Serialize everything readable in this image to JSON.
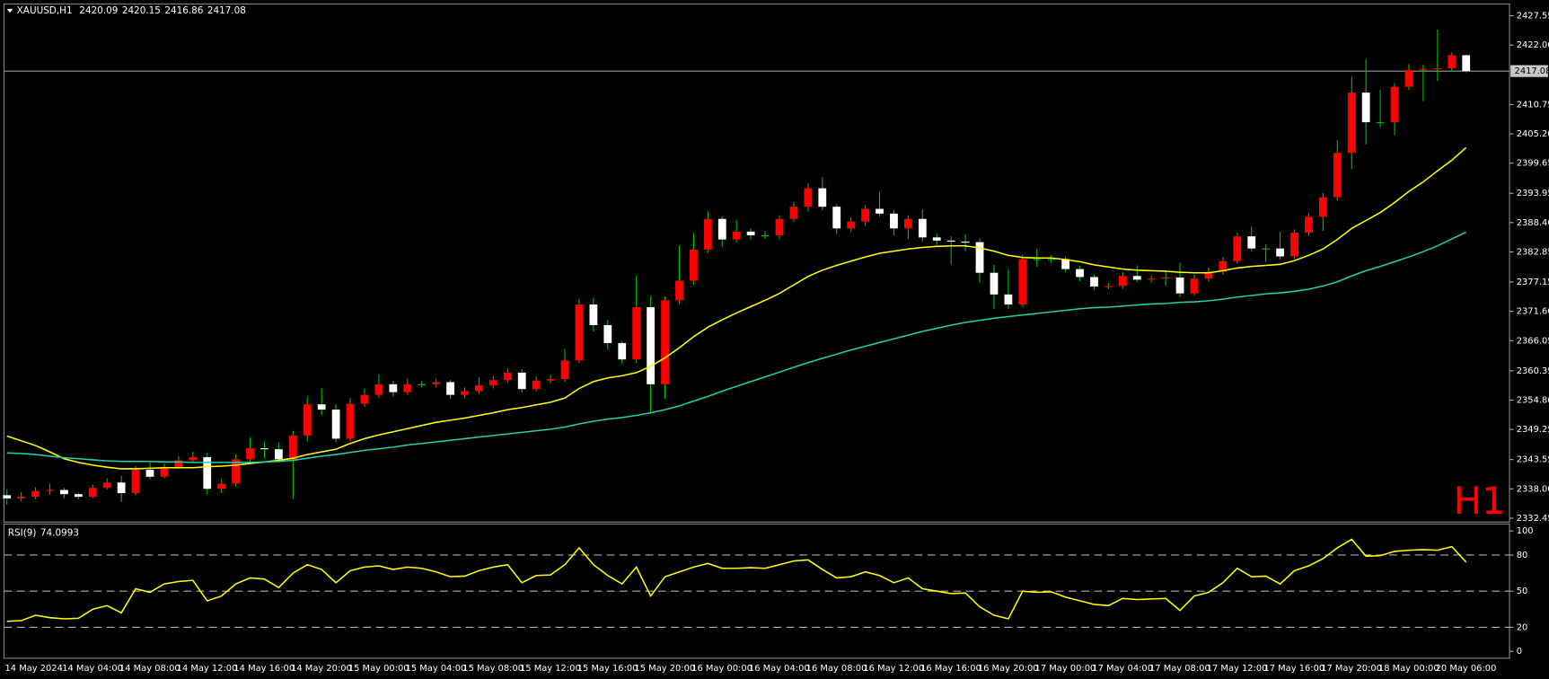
{
  "chart_data": [
    {
      "type": "candlestick",
      "title": "XAUUSD,H1",
      "timeframe_label": "H1",
      "categories": [
        "14 May 2024",
        null,
        null,
        null,
        "14 May 04:00",
        null,
        null,
        null,
        "14 May 08:00",
        null,
        null,
        null,
        "14 May 12:00",
        null,
        null,
        null,
        "14 May 16:00",
        null,
        null,
        null,
        "14 May 20:00",
        null,
        null,
        null,
        "15 May 00:00",
        null,
        null,
        null,
        "15 May 04:00",
        null,
        null,
        null,
        "15 May 08:00",
        null,
        null,
        null,
        "15 May 12:00",
        null,
        null,
        null,
        "15 May 16:00",
        null,
        null,
        null,
        "15 May 20:00",
        null,
        null,
        null,
        "16 May 00:00",
        null,
        null,
        null,
        "16 May 04:00",
        null,
        null,
        null,
        "16 May 08:00",
        null,
        null,
        null,
        "16 May 12:00",
        null,
        null,
        null,
        "16 May 16:00",
        null,
        null,
        null,
        "16 May 20:00",
        null,
        null,
        null,
        "17 May 00:00",
        null,
        null,
        null,
        "17 May 04:00",
        null,
        null,
        null,
        "17 May 08:00",
        null,
        null,
        null,
        "17 May 12:00",
        null,
        null,
        null,
        "17 May 16:00",
        null,
        null,
        null,
        "17 May 20:00",
        null,
        null,
        null,
        "18 May 00:00",
        null,
        null,
        null,
        "20 May 06:00",
        null,
        null
      ],
      "open": [
        2336.8,
        2336.2,
        2336.5,
        2337.6,
        2337.8,
        2337.0,
        2336.5,
        2338.2,
        2339.2,
        2337.2,
        2341.6,
        2340.3,
        2342.1,
        2343.4,
        2344.0,
        2338.0,
        2339.0,
        2343.6,
        2345.7,
        2345.5,
        2343.6,
        2348.1,
        2354.0,
        2353.0,
        2347.5,
        2354.1,
        2355.8,
        2357.8,
        2356.3,
        2357.8,
        2357.8,
        2358.2,
        2355.8,
        2356.5,
        2357.6,
        2358.6,
        2360.0,
        2356.9,
        2358.5,
        2358.8,
        2362.3,
        2372.9,
        2369.0,
        2365.6,
        2362.5,
        2372.4,
        2357.8,
        2373.7,
        2377.4,
        2383.3,
        2389.1,
        2385.2,
        2386.7,
        2386.0,
        2386.0,
        2389.1,
        2391.4,
        2394.9,
        2391.4,
        2387.3,
        2388.6,
        2391.0,
        2390.1,
        2387.3,
        2389.1,
        2385.6,
        2385.0,
        2384.8,
        2384.7,
        2378.9,
        2374.8,
        2372.9,
        2381.5,
        2381.5,
        2381.5,
        2379.6,
        2378.1,
        2376.3,
        2376.4,
        2378.3,
        2377.6,
        2377.8,
        2378.0,
        2375.0,
        2377.8,
        2379.1,
        2381.1,
        2385.8,
        2383.5,
        2383.5,
        2382.0,
        2386.5,
        2389.5,
        2393.2,
        2401.6,
        2413.0,
        2407.4,
        2407.4,
        2414.1,
        2417.3,
        2417.5,
        2417.6,
        2420.09
      ],
      "high": [
        2337.9,
        2337.4,
        2338.3,
        2339.0,
        2338.2,
        2337.3,
        2338.8,
        2340.0,
        2340.5,
        2342.3,
        2343.0,
        2342.8,
        2344.2,
        2345.0,
        2344.8,
        2339.8,
        2344.5,
        2347.8,
        2347.0,
        2346.8,
        2349.0,
        2355.5,
        2357.0,
        2354.0,
        2355.2,
        2357.0,
        2359.7,
        2358.5,
        2358.9,
        2358.5,
        2358.9,
        2358.6,
        2357.2,
        2359.1,
        2359.3,
        2360.8,
        2360.6,
        2359.3,
        2359.6,
        2364.5,
        2374.0,
        2374.2,
        2370.0,
        2366.0,
        2378.4,
        2374.5,
        2374.4,
        2384.0,
        2386.5,
        2390.6,
        2389.6,
        2388.9,
        2387.3,
        2386.8,
        2389.8,
        2392.3,
        2395.8,
        2397.0,
        2391.9,
        2389.4,
        2391.7,
        2394.2,
        2390.8,
        2389.8,
        2390.9,
        2386.3,
        2385.8,
        2386.2,
        2385.4,
        2380.4,
        2379.6,
        2382.3,
        2383.5,
        2382.3,
        2382.0,
        2380.2,
        2378.6,
        2377.0,
        2379.0,
        2380.3,
        2378.4,
        2379.4,
        2380.8,
        2378.6,
        2379.9,
        2381.9,
        2386.5,
        2387.7,
        2384.3,
        2386.7,
        2387.1,
        2390.2,
        2394.0,
        2404.0,
        2416.0,
        2419.3,
        2413.5,
        2414.8,
        2418.4,
        2418.3,
        2424.9,
        2420.5,
        2420.15
      ],
      "low": [
        2335.0,
        2335.6,
        2336.0,
        2336.9,
        2336.2,
        2336.0,
        2336.3,
        2337.9,
        2335.5,
        2336.8,
        2339.8,
        2340.0,
        2341.8,
        2342.9,
        2337.0,
        2337.2,
        2338.5,
        2343.0,
        2343.8,
        2343.0,
        2336.0,
        2347.0,
        2352.0,
        2346.8,
        2347.0,
        2353.5,
        2355.2,
        2355.5,
        2355.8,
        2357.2,
        2357.2,
        2355.0,
        2355.2,
        2356.0,
        2357.0,
        2358.0,
        2356.2,
        2356.5,
        2357.9,
        2358.2,
        2361.8,
        2367.8,
        2364.4,
        2361.6,
        2361.8,
        2352.3,
        2355.0,
        2373.0,
        2376.6,
        2382.6,
        2383.8,
        2384.6,
        2385.2,
        2385.3,
        2385.2,
        2388.5,
        2390.5,
        2390.7,
        2386.2,
        2386.6,
        2387.8,
        2389.5,
        2386.0,
        2385.3,
        2384.8,
        2384.2,
        2380.5,
        2383.0,
        2377.0,
        2372.0,
        2372.1,
        2372.4,
        2380.0,
        2380.7,
        2379.0,
        2377.3,
        2375.7,
        2375.8,
        2375.9,
        2377.1,
        2377.0,
        2376.5,
        2374.3,
        2374.6,
        2377.2,
        2378.5,
        2380.6,
        2382.9,
        2381.0,
        2381.4,
        2381.5,
        2385.9,
        2386.8,
        2392.6,
        2398.5,
        2403.2,
        2406.5,
        2405.0,
        2413.5,
        2411.4,
        2415.2,
        2417.0,
        2416.86
      ],
      "close": [
        2336.2,
        2336.5,
        2337.6,
        2337.8,
        2337.0,
        2336.5,
        2338.2,
        2339.2,
        2337.2,
        2341.6,
        2340.3,
        2342.1,
        2343.4,
        2344.0,
        2338.0,
        2339.0,
        2343.6,
        2345.7,
        2345.5,
        2343.6,
        2348.1,
        2354.0,
        2353.0,
        2347.5,
        2354.1,
        2355.8,
        2357.8,
        2356.3,
        2357.8,
        2357.8,
        2358.2,
        2355.8,
        2356.5,
        2357.6,
        2358.6,
        2360.0,
        2356.9,
        2358.5,
        2358.8,
        2362.3,
        2372.9,
        2369.0,
        2365.6,
        2362.5,
        2372.4,
        2357.8,
        2373.7,
        2377.4,
        2383.3,
        2389.1,
        2385.2,
        2386.7,
        2386.0,
        2386.0,
        2389.1,
        2391.4,
        2394.9,
        2391.4,
        2387.3,
        2388.6,
        2391.0,
        2390.1,
        2387.3,
        2389.1,
        2385.6,
        2385.0,
        2384.8,
        2384.7,
        2378.9,
        2374.8,
        2372.9,
        2381.5,
        2381.5,
        2381.5,
        2379.6,
        2378.1,
        2376.3,
        2376.4,
        2378.3,
        2377.6,
        2377.8,
        2378.0,
        2375.0,
        2377.8,
        2379.1,
        2381.1,
        2385.8,
        2383.5,
        2383.5,
        2382.0,
        2386.5,
        2389.5,
        2393.2,
        2401.6,
        2413.0,
        2407.4,
        2407.4,
        2414.1,
        2417.3,
        2417.5,
        2417.6,
        2420.09,
        2417.08
      ],
      "up_color": "#ff0000",
      "down_color": "#ffffff",
      "wick_color": "#00c000",
      "lines": [
        {
          "color": "#ffff00",
          "values": [
            2348.0,
            2347.1,
            2346.2,
            2345.0,
            2343.7,
            2343.0,
            2342.5,
            2342.1,
            2341.8,
            2341.8,
            2341.9,
            2342.0,
            2342.0,
            2342.0,
            2342.2,
            2342.3,
            2342.5,
            2342.8,
            2343.1,
            2343.4,
            2343.8,
            2344.5,
            2345.0,
            2345.5,
            2346.6,
            2347.5,
            2348.2,
            2348.8,
            2349.4,
            2350.0,
            2350.6,
            2351.0,
            2351.4,
            2351.9,
            2352.4,
            2353.0,
            2353.4,
            2353.9,
            2354.4,
            2355.2,
            2357.0,
            2358.3,
            2359.0,
            2359.4,
            2360.0,
            2361.2,
            2362.8,
            2364.7,
            2366.8,
            2368.6,
            2370.0,
            2371.3,
            2372.5,
            2373.7,
            2375.0,
            2376.6,
            2378.2,
            2379.4,
            2380.3,
            2381.1,
            2381.9,
            2382.6,
            2383.0,
            2383.4,
            2383.7,
            2383.9,
            2384.0,
            2384.0,
            2383.6,
            2383.0,
            2382.2,
            2381.8,
            2381.7,
            2381.7,
            2381.4,
            2381.0,
            2380.4,
            2380.0,
            2379.6,
            2379.4,
            2379.3,
            2379.2,
            2379.0,
            2378.9,
            2378.9,
            2379.3,
            2379.8,
            2380.1,
            2380.3,
            2380.5,
            2381.2,
            2382.2,
            2383.4,
            2385.2,
            2387.3,
            2388.8,
            2390.3,
            2392.2,
            2394.3,
            2396.1,
            2398.2,
            2400.2,
            2402.6
          ]
        },
        {
          "color": "#20d0a8",
          "values": [
            2344.8,
            2344.7,
            2344.5,
            2344.2,
            2343.9,
            2343.7,
            2343.5,
            2343.3,
            2343.2,
            2343.2,
            2343.2,
            2343.1,
            2343.1,
            2343.0,
            2343.0,
            2343.0,
            2343.0,
            2343.0,
            2343.1,
            2343.2,
            2343.4,
            2343.8,
            2344.2,
            2344.5,
            2344.9,
            2345.3,
            2345.6,
            2345.9,
            2346.3,
            2346.6,
            2346.9,
            2347.2,
            2347.5,
            2347.8,
            2348.1,
            2348.4,
            2348.7,
            2349.0,
            2349.3,
            2349.7,
            2350.3,
            2350.8,
            2351.2,
            2351.5,
            2351.9,
            2352.4,
            2353.0,
            2353.7,
            2354.6,
            2355.5,
            2356.5,
            2357.4,
            2358.3,
            2359.2,
            2360.1,
            2361.0,
            2361.9,
            2362.7,
            2363.5,
            2364.3,
            2365.0,
            2365.7,
            2366.4,
            2367.1,
            2367.8,
            2368.4,
            2369.0,
            2369.5,
            2369.9,
            2370.3,
            2370.6,
            2370.9,
            2371.2,
            2371.5,
            2371.8,
            2372.1,
            2372.3,
            2372.4,
            2372.6,
            2372.8,
            2373.0,
            2373.1,
            2373.3,
            2373.4,
            2373.6,
            2373.9,
            2374.3,
            2374.6,
            2374.9,
            2375.1,
            2375.4,
            2375.8,
            2376.4,
            2377.2,
            2378.3,
            2379.3,
            2380.1,
            2381.0,
            2381.9,
            2382.9,
            2384.0,
            2385.3,
            2386.6
          ]
        }
      ],
      "ylim": [
        2331.9,
        2429.6
      ],
      "yticks": [
        2332.45,
        {
          "value": 2338.0,
          "label": "2338.00"
        },
        2343.55,
        2349.25,
        {
          "value": 2354.8,
          "label": "2354.80"
        },
        2360.35,
        2366.05,
        {
          "value": 2371.6,
          "label": "2371.60"
        },
        2377.15,
        2382.85,
        {
          "value": 2388.4,
          "label": "2388.40"
        },
        2393.95,
        2399.65,
        {
          "value": 2405.2,
          "label": "2405.20"
        },
        2410.75,
        {
          "value": 2422.0,
          "label": "2422.00"
        },
        2427.55
      ]
    },
    {
      "type": "line",
      "title": "RSI(9)",
      "color": "#ffff00",
      "values": [
        25,
        25.5,
        30,
        28,
        27,
        27.5,
        35,
        38,
        32,
        52,
        49,
        56,
        58,
        59,
        42,
        46,
        56,
        61,
        60,
        53,
        65,
        72,
        68,
        57,
        67,
        70,
        71,
        68,
        70,
        69,
        66,
        62,
        62.5,
        67,
        70,
        72,
        57,
        63,
        63.5,
        72,
        86,
        72,
        63,
        56,
        70,
        46,
        62,
        66,
        70,
        73,
        69,
        69,
        69.5,
        69,
        72,
        75,
        76,
        68,
        61,
        62,
        66,
        63,
        57,
        61,
        52,
        50,
        48,
        48.5,
        37,
        30,
        27,
        50,
        49,
        49.5,
        45,
        42,
        39,
        38,
        44,
        43,
        43.5,
        44,
        34,
        46,
        49,
        57,
        69,
        62,
        62.5,
        56,
        67,
        71,
        77,
        86,
        93,
        79,
        79.5,
        83,
        84,
        84.5,
        84,
        87,
        74.0993
      ],
      "ylim": [
        -4.1,
        104.9
      ],
      "yticks": [
        0,
        20,
        50,
        80,
        100
      ],
      "levels": [
        20,
        50,
        80
      ]
    }
  ]
}
